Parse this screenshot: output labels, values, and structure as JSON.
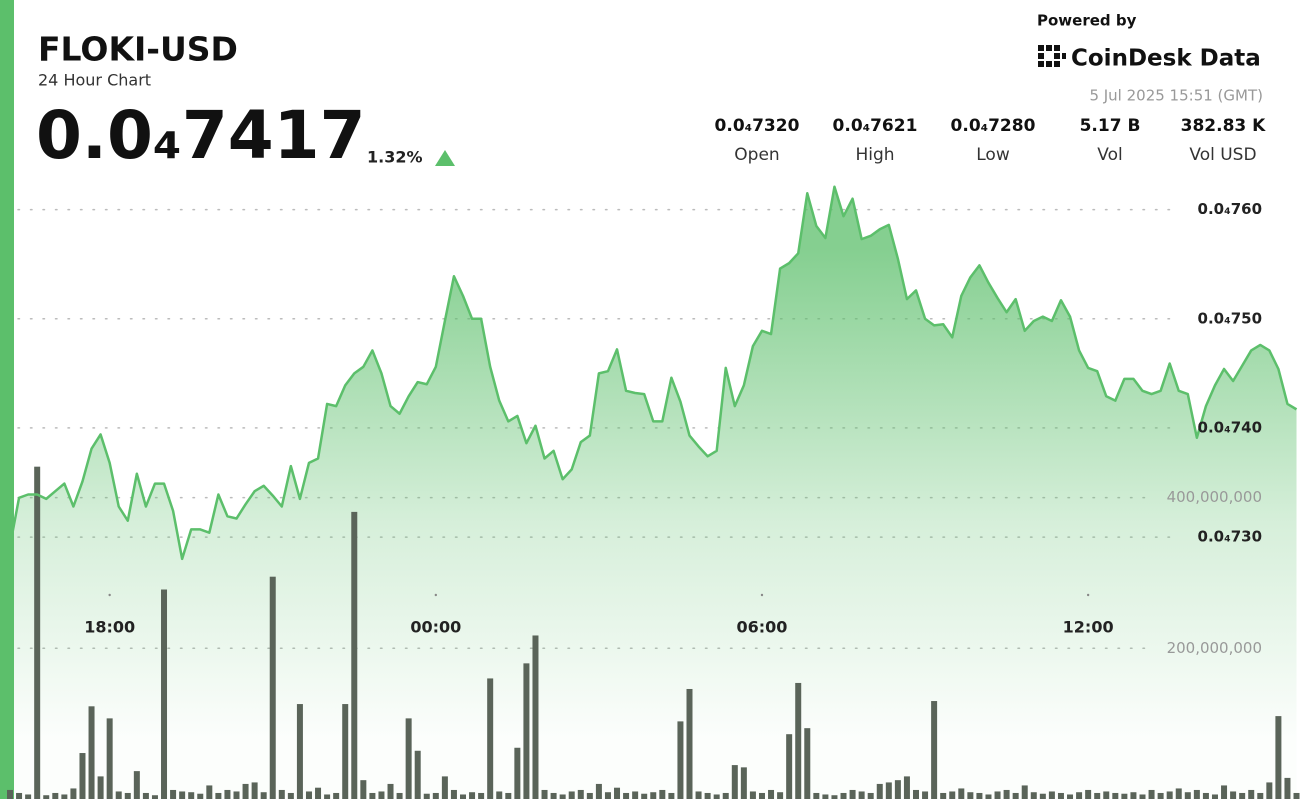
{
  "chart_data": {
    "type": "line",
    "title": "FLOKI-USD",
    "subtitle": "24 Hour Chart",
    "price": "0.0₄7417",
    "change": "1.32%",
    "stats": [
      {
        "value": "0.0₄7320",
        "label": "Open"
      },
      {
        "value": "0.0₄7621",
        "label": "High"
      },
      {
        "value": "0.0₄7280",
        "label": "Low"
      },
      {
        "value": "5.17 B",
        "label": "Vol"
      },
      {
        "value": "382.83 K",
        "label": "Vol USD"
      }
    ],
    "powered_by": "Powered by",
    "brand": "CoinDesk Data",
    "timestamp": "5 Jul 2025 15:51 (GMT)",
    "categories": [
      null,
      null,
      null,
      null,
      null,
      null,
      null,
      null,
      null,
      null,
      null,
      "18:00",
      null,
      null,
      null,
      null,
      null,
      null,
      null,
      null,
      null,
      null,
      null,
      null,
      null,
      null,
      null,
      null,
      null,
      null,
      null,
      null,
      null,
      null,
      null,
      null,
      null,
      null,
      null,
      null,
      null,
      null,
      null,
      null,
      null,
      null,
      null,
      "00:00",
      null,
      null,
      null,
      null,
      null,
      null,
      null,
      null,
      null,
      null,
      null,
      null,
      null,
      null,
      null,
      null,
      null,
      null,
      null,
      null,
      null,
      null,
      null,
      null,
      null,
      null,
      null,
      null,
      null,
      null,
      null,
      null,
      null,
      null,
      null,
      "06:00",
      null,
      null,
      null,
      null,
      null,
      null,
      null,
      null,
      null,
      null,
      null,
      null,
      null,
      null,
      null,
      null,
      null,
      null,
      null,
      null,
      null,
      null,
      null,
      null,
      null,
      null,
      null,
      null,
      null,
      null,
      null,
      null,
      null,
      null,
      null,
      "12:00",
      null,
      null,
      null,
      null,
      null,
      null,
      null,
      null,
      null,
      null,
      null,
      null,
      null,
      null,
      null,
      null,
      null,
      null,
      null,
      null,
      null,
      null,
      null
    ],
    "series": [
      {
        "color": "#5cbf6b",
        "values": [
          7.292e-05,
          7.336e-05,
          7.339e-05,
          7.339e-05,
          7.335e-05,
          7.342e-05,
          7.349e-05,
          7.328e-05,
          7.351e-05,
          7.381e-05,
          7.394e-05,
          7.368e-05,
          7.328e-05,
          7.315e-05,
          7.358e-05,
          7.328e-05,
          7.349e-05,
          7.349e-05,
          7.324e-05,
          7.28e-05,
          7.307e-05,
          7.307e-05,
          7.304e-05,
          7.339e-05,
          7.319e-05,
          7.317e-05,
          7.33e-05,
          7.342e-05,
          7.347e-05,
          7.338e-05,
          7.328e-05,
          7.365e-05,
          7.335e-05,
          7.368e-05,
          7.372e-05,
          7.422e-05,
          7.42e-05,
          7.439e-05,
          7.45e-05,
          7.456e-05,
          7.471e-05,
          7.45e-05,
          7.42e-05,
          7.413e-05,
          7.429e-05,
          7.442e-05,
          7.44e-05,
          7.456e-05,
          7.498e-05,
          7.539e-05,
          7.521e-05,
          7.5e-05,
          7.5e-05,
          7.456e-05,
          7.425e-05,
          7.406e-05,
          7.411e-05,
          7.386e-05,
          7.402e-05,
          7.372e-05,
          7.379e-05,
          7.353e-05,
          7.362e-05,
          7.387e-05,
          7.393e-05,
          7.45e-05,
          7.452e-05,
          7.472e-05,
          7.434e-05,
          7.432e-05,
          7.431e-05,
          7.406e-05,
          7.406e-05,
          7.446e-05,
          7.424e-05,
          7.393e-05,
          7.383e-05,
          7.374e-05,
          7.379e-05,
          7.455e-05,
          7.42e-05,
          7.439e-05,
          7.475e-05,
          7.489e-05,
          7.486e-05,
          7.546e-05,
          7.551e-05,
          7.56e-05,
          7.615e-05,
          7.585e-05,
          7.574e-05,
          7.621e-05,
          7.594e-05,
          7.61e-05,
          7.573e-05,
          7.576e-05,
          7.582e-05,
          7.586e-05,
          7.555e-05,
          7.518e-05,
          7.526e-05,
          7.5e-05,
          7.494e-05,
          7.495e-05,
          7.483e-05,
          7.521e-05,
          7.538e-05,
          7.549e-05,
          7.533e-05,
          7.519e-05,
          7.506e-05,
          7.518e-05,
          7.489e-05,
          7.498e-05,
          7.502e-05,
          7.498e-05,
          7.517e-05,
          7.502e-05,
          7.471e-05,
          7.455e-05,
          7.452e-05,
          7.429e-05,
          7.425e-05,
          7.445e-05,
          7.445e-05,
          7.434e-05,
          7.431e-05,
          7.434e-05,
          7.459e-05,
          7.434e-05,
          7.431e-05,
          7.391e-05,
          7.42e-05,
          7.439e-05,
          7.454e-05,
          7.443e-05,
          7.457e-05,
          7.471e-05,
          7.476e-05,
          7.471e-05,
          7.454e-05,
          7.422e-05,
          7.417e-05
        ]
      },
      {
        "type": "bar",
        "axis": "y2",
        "color": "#5a6459",
        "values": [
          12000000,
          8000000,
          6000000,
          441000000,
          5000000,
          8000000,
          6000000,
          14000000,
          61000000,
          123000000,
          30000000,
          107000000,
          10000000,
          8000000,
          37000000,
          8000000,
          5000000,
          278000000,
          12000000,
          10000000,
          9000000,
          7000000,
          18000000,
          8000000,
          12000000,
          10000000,
          20000000,
          22000000,
          9000000,
          295000000,
          12000000,
          8000000,
          126000000,
          10000000,
          15000000,
          6000000,
          8000000,
          126000000,
          381000000,
          25000000,
          8000000,
          10000000,
          20000000,
          8000000,
          107000000,
          64000000,
          7000000,
          8000000,
          30000000,
          12000000,
          6000000,
          9000000,
          8000000,
          160000000,
          10000000,
          8000000,
          68000000,
          180000000,
          217000000,
          12000000,
          8000000,
          6000000,
          10000000,
          12000000,
          8000000,
          20000000,
          9000000,
          15000000,
          8000000,
          10000000,
          7000000,
          9000000,
          12000000,
          8000000,
          103000000,
          146000000,
          10000000,
          8000000,
          6000000,
          8000000,
          45000000,
          42000000,
          10000000,
          8000000,
          12000000,
          9000000,
          86000000,
          154000000,
          94000000,
          8000000,
          6000000,
          5000000,
          8000000,
          12000000,
          10000000,
          8000000,
          20000000,
          22000000,
          25000000,
          30000000,
          12000000,
          10000000,
          130000000,
          8000000,
          10000000,
          14000000,
          9000000,
          8000000,
          6000000,
          10000000,
          12000000,
          8000000,
          18000000,
          9000000,
          7000000,
          10000000,
          8000000,
          6000000,
          9000000,
          12000000,
          8000000,
          10000000,
          8000000,
          7000000,
          9000000,
          6000000,
          12000000,
          8000000,
          10000000,
          14000000,
          9000000,
          12000000,
          8000000,
          6000000,
          18000000,
          10000000,
          8000000,
          12000000,
          8000000,
          22000000,
          110000000,
          28000000,
          8000000
        ]
      }
    ],
    "ylim": [
      7.06e-05,
      7.64e-05
    ],
    "yticks": [
      {
        "value": 7.3e-05,
        "label": "0.0₄730"
      },
      {
        "value": 7.4e-05,
        "label": "0.0₄740"
      },
      {
        "value": 7.5e-05,
        "label": "0.0₄750"
      },
      {
        "value": 7.6e-05,
        "label": "0.0₄760"
      }
    ],
    "y2lim": [
      0,
      840000000
    ],
    "y2ticks": [
      {
        "value": 200000000,
        "label": "200,000,000"
      },
      {
        "value": 400000000,
        "label": "400,000,000"
      }
    ],
    "grid": true
  }
}
